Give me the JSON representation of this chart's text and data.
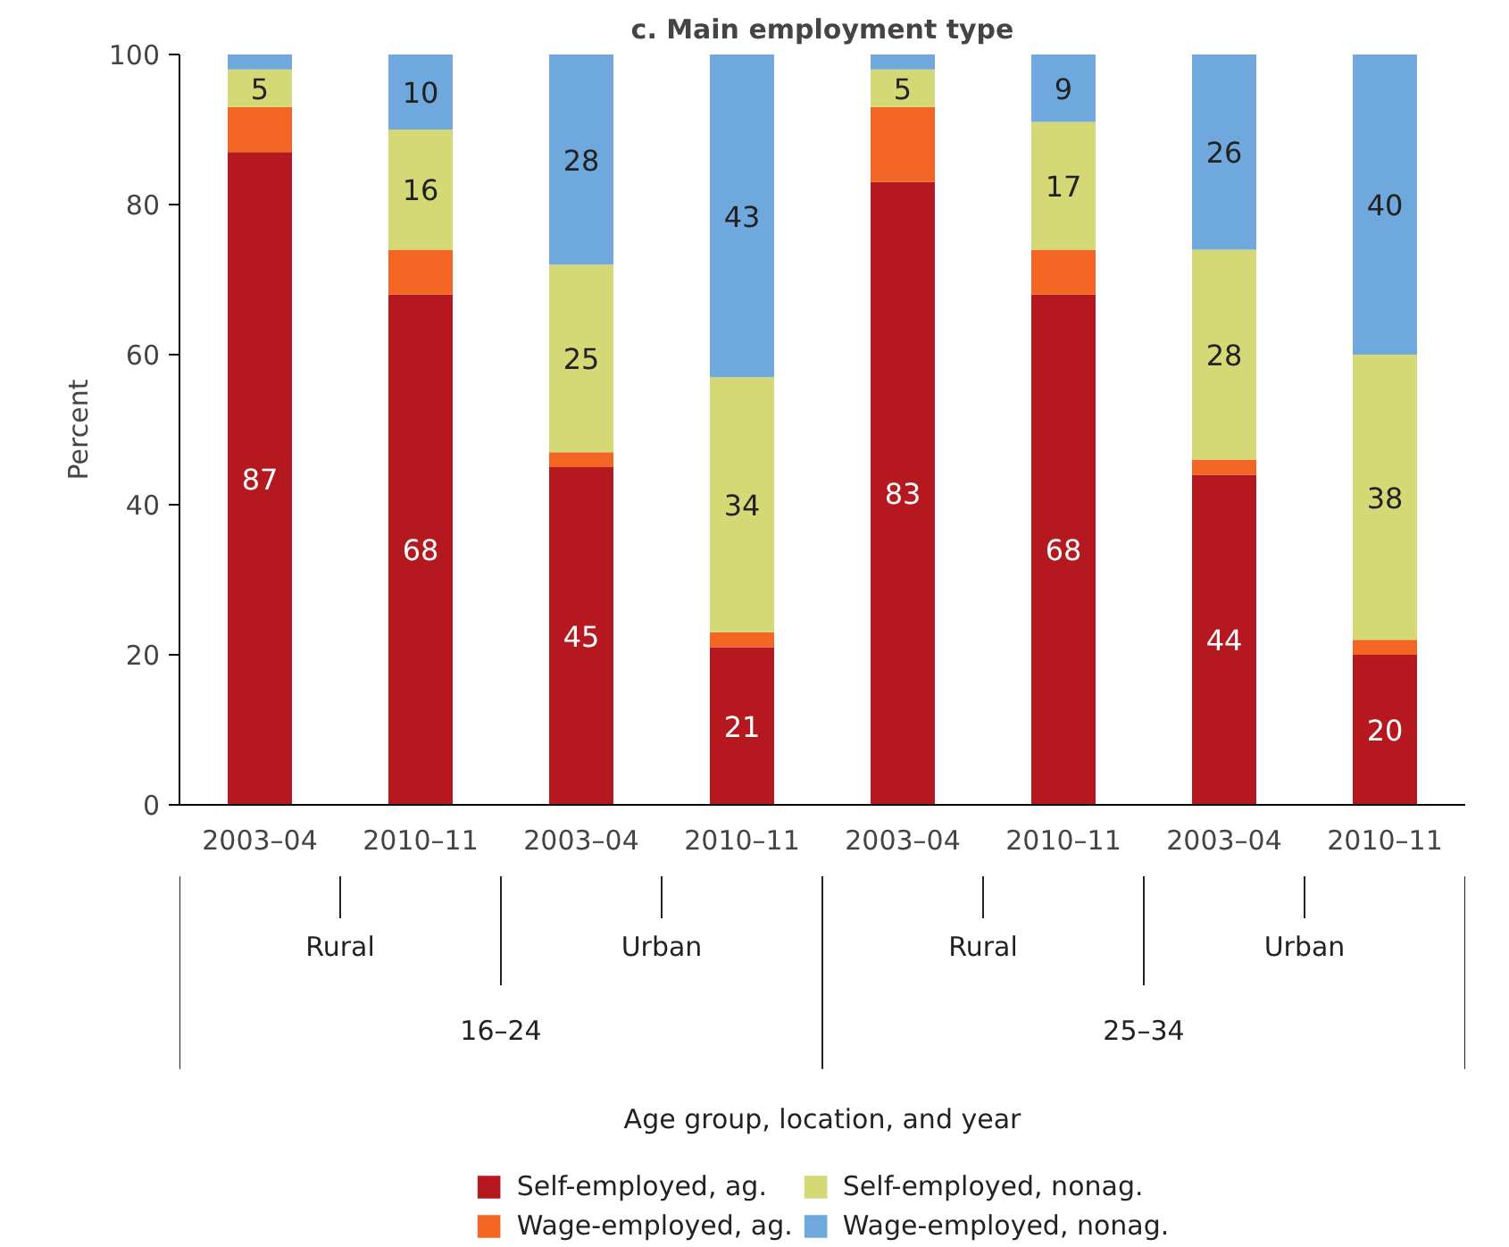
{
  "chart_data": {
    "type": "bar",
    "stacked": true,
    "title": "c. Main employment type",
    "ylabel": "Percent",
    "categories": [
      "2003–04",
      "2010–11",
      "2003–04",
      "2010–11",
      "2003–04",
      "2010–11",
      "2003–04",
      "2010–11"
    ],
    "annotations": [
      "Rural",
      "Urban",
      "Rural",
      "Urban",
      "16–24",
      "25–34",
      "Age group, location, and year"
    ],
    "series": [
      {
        "name": "Self-employed, ag.",
        "color": "#b5191f",
        "values": [
          87,
          68,
          45,
          21,
          83,
          68,
          44,
          20
        ],
        "value_labels": [
          "87",
          "68",
          "45",
          "21",
          "83",
          "68",
          "44",
          "20"
        ]
      },
      {
        "name": "Wage-employed, ag.",
        "color": "#f26522",
        "values": [
          6,
          6,
          2,
          2,
          10,
          6,
          2,
          2
        ],
        "value_labels": [
          null,
          null,
          null,
          null,
          null,
          null,
          null,
          null
        ]
      },
      {
        "name": "Self-employed, nonag.",
        "color": "#d4d975",
        "values": [
          5,
          16,
          25,
          34,
          5,
          17,
          28,
          38
        ],
        "value_labels": [
          "5",
          "16",
          "25",
          "34",
          "5",
          "17",
          "28",
          "38"
        ]
      },
      {
        "name": "Wage-employed, nonag.",
        "color": "#6fa8dc",
        "values": [
          2,
          10,
          28,
          43,
          2,
          9,
          26,
          40
        ],
        "value_labels": [
          null,
          "10",
          "28",
          "43",
          null,
          "9",
          "26",
          "40"
        ]
      }
    ],
    "ylim": [
      0,
      100
    ],
    "yticks": [
      0,
      20,
      40,
      60,
      80,
      100
    ],
    "grid": false,
    "legend": "bottom"
  }
}
